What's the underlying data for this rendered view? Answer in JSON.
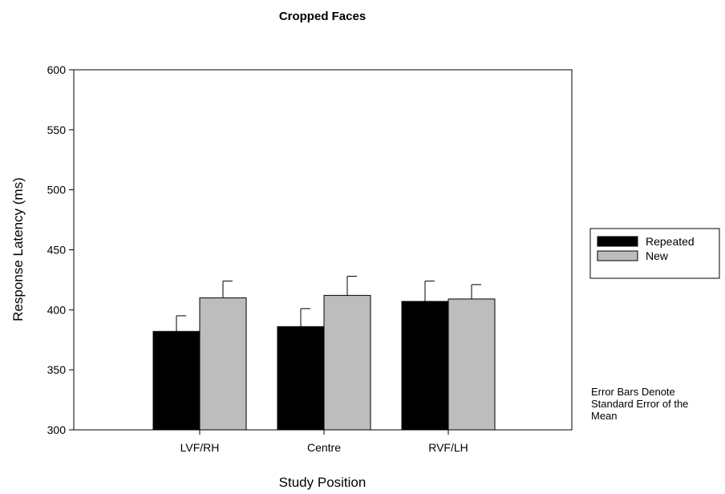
{
  "chart_data": {
    "type": "bar",
    "title": "Cropped Faces",
    "xlabel": "Study Position",
    "ylabel": "Response Latency (ms)",
    "categories": [
      "LVF/RH",
      "Centre",
      "RVF/LH"
    ],
    "ylim": [
      300,
      600
    ],
    "yticks": [
      300,
      350,
      400,
      450,
      500,
      550,
      600
    ],
    "grid": false,
    "legend_position": "right",
    "series": [
      {
        "name": "Repeated",
        "color": "#000000",
        "values": [
          382,
          386,
          407
        ],
        "errors": [
          13,
          15,
          17
        ]
      },
      {
        "name": "New",
        "color": "#bdbdbd",
        "values": [
          410,
          412,
          409
        ],
        "errors": [
          14,
          16,
          12
        ]
      }
    ]
  },
  "note": {
    "lines": [
      "Error Bars Denote",
      "Standard Error of the",
      "Mean"
    ]
  }
}
